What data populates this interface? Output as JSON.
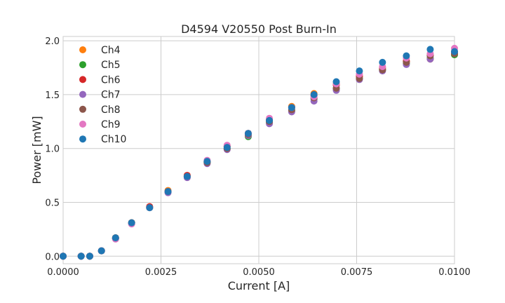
{
  "chart_data": {
    "type": "scatter",
    "title": "D4594 V20550 Post Burn-In",
    "xlabel": "Current [A]",
    "ylabel": "Power [mW]",
    "xlim": [
      0,
      0.01
    ],
    "ylim": [
      -0.07,
      2.04
    ],
    "x_ticks": [
      "0.0000",
      "0.0025",
      "0.0050",
      "0.0075",
      "0.0100"
    ],
    "x_tick_values": [
      0,
      0.0025,
      0.005,
      0.0075,
      0.01
    ],
    "y_ticks": [
      "0.0",
      "0.5",
      "1.0",
      "1.5",
      "2.0"
    ],
    "y_tick_values": [
      0,
      0.5,
      1.0,
      1.5,
      2.0
    ],
    "grid": true,
    "legend_position": "top-left",
    "series": [
      {
        "name": "Ch4",
        "color": "#ff7f0e",
        "x": [
          0,
          0.00046,
          0.00068,
          0.00098,
          0.00134,
          0.00175,
          0.00221,
          0.00268,
          0.00317,
          0.00368,
          0.00419,
          0.00473,
          0.00527,
          0.00584,
          0.00641,
          0.00698,
          0.00757,
          0.00816,
          0.00877,
          0.00938,
          0.01
        ],
        "y": [
          0,
          0,
          0,
          0.05,
          0.17,
          0.31,
          0.46,
          0.61,
          0.75,
          0.88,
          1.02,
          1.14,
          1.27,
          1.39,
          1.51,
          1.6,
          1.67,
          1.75,
          1.81,
          1.83,
          1.89
        ]
      },
      {
        "name": "Ch5",
        "color": "#2ca02c",
        "x": [
          0,
          0.00046,
          0.00068,
          0.00098,
          0.00134,
          0.00175,
          0.00221,
          0.00268,
          0.00317,
          0.00368,
          0.00419,
          0.00473,
          0.00527,
          0.00584,
          0.00641,
          0.00698,
          0.00757,
          0.00816,
          0.00877,
          0.00938,
          0.01
        ],
        "y": [
          0,
          0,
          0,
          0.05,
          0.17,
          0.31,
          0.45,
          0.6,
          0.74,
          0.87,
          1.0,
          1.11,
          1.24,
          1.35,
          1.46,
          1.56,
          1.65,
          1.73,
          1.79,
          1.84,
          1.87
        ]
      },
      {
        "name": "Ch6",
        "color": "#d62728",
        "x": [
          0,
          0.00046,
          0.00068,
          0.00098,
          0.00134,
          0.00175,
          0.00221,
          0.00268,
          0.00317,
          0.00368,
          0.00419,
          0.00473,
          0.00527,
          0.00584,
          0.00641,
          0.00698,
          0.00757,
          0.00816,
          0.00877,
          0.00938,
          0.01
        ],
        "y": [
          0,
          0,
          0,
          0.05,
          0.17,
          0.31,
          0.46,
          0.6,
          0.75,
          0.88,
          1.02,
          1.14,
          1.26,
          1.38,
          1.49,
          1.59,
          1.67,
          1.74,
          1.81,
          1.87,
          1.9
        ]
      },
      {
        "name": "Ch7",
        "color": "#9467bd",
        "x": [
          0,
          0.00046,
          0.00068,
          0.00098,
          0.00134,
          0.00175,
          0.00221,
          0.00268,
          0.00317,
          0.00368,
          0.00419,
          0.00473,
          0.00527,
          0.00584,
          0.00641,
          0.00698,
          0.00757,
          0.00816,
          0.00877,
          0.00938,
          0.01
        ],
        "y": [
          0,
          0,
          0,
          0.05,
          0.16,
          0.3,
          0.45,
          0.59,
          0.73,
          0.86,
          0.99,
          1.12,
          1.23,
          1.34,
          1.44,
          1.54,
          1.64,
          1.72,
          1.78,
          1.83,
          1.89
        ]
      },
      {
        "name": "Ch8",
        "color": "#8c564b",
        "x": [
          0,
          0.00046,
          0.00068,
          0.00098,
          0.00134,
          0.00175,
          0.00221,
          0.00268,
          0.00317,
          0.00368,
          0.00419,
          0.00473,
          0.00527,
          0.00584,
          0.00641,
          0.00698,
          0.00757,
          0.00816,
          0.00877,
          0.00938,
          0.01
        ],
        "y": [
          0,
          0,
          0,
          0.05,
          0.17,
          0.31,
          0.45,
          0.6,
          0.74,
          0.87,
          1.0,
          1.13,
          1.25,
          1.36,
          1.47,
          1.56,
          1.65,
          1.73,
          1.8,
          1.86,
          1.88
        ]
      },
      {
        "name": "Ch9",
        "color": "#e377c2",
        "x": [
          0,
          0.00046,
          0.00068,
          0.00098,
          0.00134,
          0.00175,
          0.00221,
          0.00268,
          0.00317,
          0.00368,
          0.00419,
          0.00473,
          0.00527,
          0.00584,
          0.00641,
          0.00698,
          0.00757,
          0.00816,
          0.00877,
          0.00938,
          0.01
        ],
        "y": [
          0,
          0,
          0,
          0.05,
          0.16,
          0.3,
          0.45,
          0.6,
          0.74,
          0.89,
          1.03,
          1.14,
          1.28,
          1.38,
          1.48,
          1.6,
          1.69,
          1.76,
          1.84,
          1.88,
          1.93
        ]
      },
      {
        "name": "Ch10",
        "color": "#1f77b4",
        "x": [
          0,
          0.00046,
          0.00068,
          0.00098,
          0.00134,
          0.00175,
          0.00221,
          0.00268,
          0.00317,
          0.00368,
          0.00419,
          0.00473,
          0.00527,
          0.00584,
          0.00641,
          0.00698,
          0.00757,
          0.00816,
          0.00877,
          0.00938,
          0.01
        ],
        "y": [
          0,
          0,
          0,
          0.05,
          0.17,
          0.31,
          0.45,
          0.6,
          0.74,
          0.88,
          1.01,
          1.14,
          1.26,
          1.38,
          1.5,
          1.62,
          1.72,
          1.8,
          1.86,
          1.92,
          1.9
        ]
      }
    ]
  }
}
